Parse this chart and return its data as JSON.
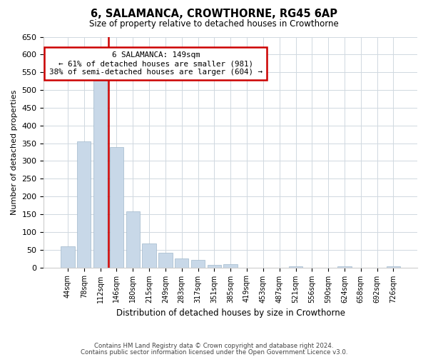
{
  "title": "6, SALAMANCA, CROWTHORNE, RG45 6AP",
  "subtitle": "Size of property relative to detached houses in Crowthorne",
  "xlabel": "Distribution of detached houses by size in Crowthorne",
  "ylabel": "Number of detached properties",
  "bin_labels": [
    "44sqm",
    "78sqm",
    "112sqm",
    "146sqm",
    "180sqm",
    "215sqm",
    "249sqm",
    "283sqm",
    "317sqm",
    "351sqm",
    "385sqm",
    "419sqm",
    "453sqm",
    "487sqm",
    "521sqm",
    "556sqm",
    "590sqm",
    "624sqm",
    "658sqm",
    "692sqm",
    "726sqm"
  ],
  "bar_heights": [
    60,
    355,
    540,
    340,
    158,
    68,
    42,
    25,
    21,
    8,
    10,
    0,
    0,
    0,
    3,
    0,
    0,
    3,
    0,
    0,
    3
  ],
  "bar_color": "#c8d8e8",
  "bar_edge_color": "#a0b8cc",
  "property_line_color": "#cc0000",
  "property_line_x": 2.5,
  "ylim": [
    0,
    650
  ],
  "yticks": [
    0,
    50,
    100,
    150,
    200,
    250,
    300,
    350,
    400,
    450,
    500,
    550,
    600,
    650
  ],
  "annotation_title": "6 SALAMANCA: 149sqm",
  "annotation_line1": "← 61% of detached houses are smaller (981)",
  "annotation_line2": "38% of semi-detached houses are larger (604) →",
  "annotation_box_color": "#ffffff",
  "annotation_box_edge": "#cc0000",
  "footer1": "Contains HM Land Registry data © Crown copyright and database right 2024.",
  "footer2": "Contains public sector information licensed under the Open Government Licence v3.0.",
  "background_color": "#ffffff",
  "grid_color": "#d0d8e0"
}
